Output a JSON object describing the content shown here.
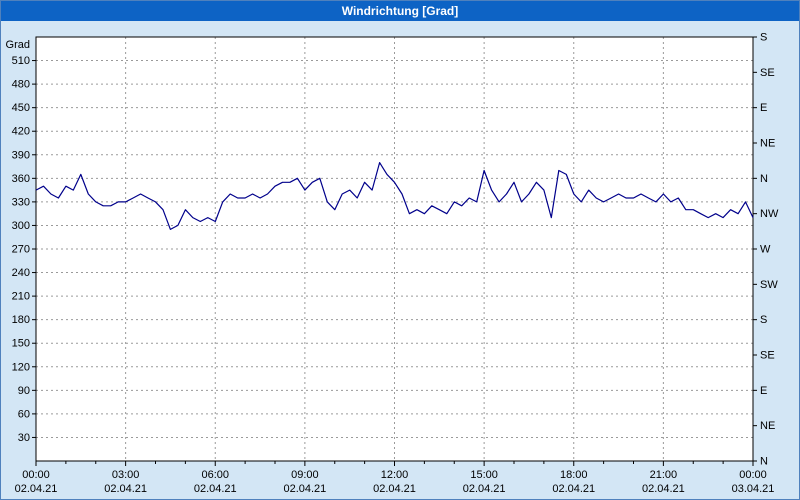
{
  "window": {
    "title": "Windrichtung [Grad]"
  },
  "colors": {
    "titlebar_bg": "#0d63c5",
    "titlebar_text": "#ffffff",
    "background": "#d3e6f5",
    "plot_bg": "#ffffff",
    "grid": "#9a9a9a",
    "axis": "#000000",
    "line": "#00008b"
  },
  "chart_data": {
    "type": "line",
    "title": "Windrichtung [Grad]",
    "y_axis_label": "Grad",
    "ylim": [
      0,
      540
    ],
    "y_grid_step": 30,
    "y_ticks_left": [
      510,
      480,
      450,
      420,
      390,
      360,
      330,
      300,
      270,
      240,
      210,
      180,
      150,
      120,
      90,
      60,
      30
    ],
    "right_axis_labels": [
      {
        "deg": 540,
        "label": "S"
      },
      {
        "deg": 495,
        "label": "SE"
      },
      {
        "deg": 450,
        "label": "E"
      },
      {
        "deg": 405,
        "label": "NE"
      },
      {
        "deg": 360,
        "label": "N"
      },
      {
        "deg": 315,
        "label": "NW"
      },
      {
        "deg": 270,
        "label": "W"
      },
      {
        "deg": 225,
        "label": "SW"
      },
      {
        "deg": 180,
        "label": "S"
      },
      {
        "deg": 135,
        "label": "SE"
      },
      {
        "deg": 90,
        "label": "E"
      },
      {
        "deg": 45,
        "label": "NE"
      },
      {
        "deg": 0,
        "label": "N"
      }
    ],
    "xlim_minutes": [
      0,
      1440
    ],
    "x_ticks": [
      {
        "minutes": 0,
        "time": "00:00",
        "date": "02.04.21"
      },
      {
        "minutes": 180,
        "time": "03:00",
        "date": "02.04.21"
      },
      {
        "minutes": 360,
        "time": "06:00",
        "date": "02.04.21"
      },
      {
        "minutes": 540,
        "time": "09:00",
        "date": "02.04.21"
      },
      {
        "minutes": 720,
        "time": "12:00",
        "date": "02.04.21"
      },
      {
        "minutes": 900,
        "time": "15:00",
        "date": "02.04.21"
      },
      {
        "minutes": 1080,
        "time": "18:00",
        "date": "02.04.21"
      },
      {
        "minutes": 1260,
        "time": "21:00",
        "date": "02.04.21"
      },
      {
        "minutes": 1440,
        "time": "00:00",
        "date": "03.04.21"
      }
    ],
    "grid": "dashed",
    "legend": "none",
    "series": [
      {
        "name": "Windrichtung",
        "color": "#00008b",
        "x_start_minutes": 0,
        "x_step_minutes": 15,
        "values": [
          345,
          350,
          340,
          335,
          350,
          345,
          365,
          340,
          330,
          325,
          325,
          330,
          330,
          335,
          340,
          335,
          330,
          320,
          295,
          300,
          320,
          310,
          305,
          310,
          305,
          330,
          340,
          335,
          335,
          340,
          335,
          340,
          350,
          355,
          355,
          360,
          345,
          355,
          360,
          330,
          320,
          340,
          345,
          335,
          355,
          345,
          380,
          365,
          355,
          340,
          315,
          320,
          315,
          325,
          320,
          315,
          330,
          325,
          335,
          330,
          370,
          345,
          330,
          340,
          355,
          330,
          340,
          355,
          345,
          310,
          370,
          365,
          340,
          330,
          345,
          335,
          330,
          335,
          340,
          335,
          335,
          340,
          335,
          330,
          340,
          330,
          335,
          320,
          320,
          315,
          310,
          315,
          310,
          320,
          315,
          330,
          310
        ]
      }
    ]
  }
}
